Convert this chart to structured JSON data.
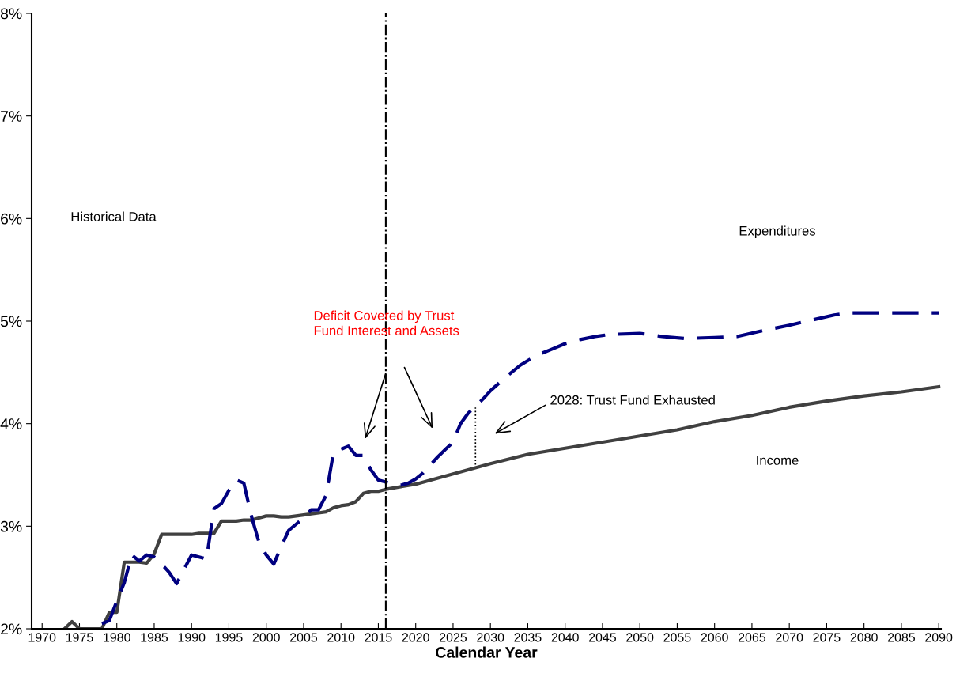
{
  "chart_data": {
    "type": "line",
    "xlabel": "Calendar Year",
    "xlim": [
      1968.6,
      2090.3
    ],
    "xticks": [
      1970,
      1975,
      1980,
      1985,
      1990,
      1995,
      2000,
      2005,
      2010,
      2015,
      2020,
      2025,
      2030,
      2035,
      2040,
      2045,
      2050,
      2055,
      2060,
      2065,
      2070,
      2075,
      2080,
      2085,
      2090
    ],
    "ylim": [
      2,
      8
    ],
    "yticks": [
      {
        "value": 2,
        "label": "2%"
      },
      {
        "value": 3,
        "label": "3%"
      },
      {
        "value": 4,
        "label": "4%"
      },
      {
        "value": 5,
        "label": "5%"
      },
      {
        "value": 6,
        "label": "6%"
      },
      {
        "value": 7,
        "label": "7%"
      },
      {
        "value": 8,
        "label": "8%"
      }
    ],
    "grid": false,
    "series": [
      {
        "color": "#404040",
        "line_style": "solid",
        "x": [
          1973,
          1974,
          1975,
          1977,
          1978,
          1979,
          1980,
          1981,
          1982,
          1983,
          1984,
          1985,
          1986,
          1987,
          1988,
          1989,
          1990,
          1991,
          1992,
          1993,
          1994,
          1995,
          1996,
          1997,
          1998,
          1999,
          2000,
          2001,
          2002,
          2003,
          2004,
          2005,
          2006,
          2007,
          2008,
          2009,
          2010,
          2011,
          2012,
          2013,
          2014,
          2015,
          2016,
          2020,
          2025,
          2030,
          2035,
          2040,
          2045,
          2050,
          2055,
          2060,
          2065,
          2070,
          2075,
          2080,
          2085,
          2090
        ],
        "values": [
          2.0,
          2.07,
          2.0,
          2.0,
          2.0,
          2.16,
          2.16,
          2.65,
          2.65,
          2.65,
          2.64,
          2.73,
          2.92,
          2.92,
          2.92,
          2.92,
          2.92,
          2.93,
          2.93,
          2.93,
          3.05,
          3.05,
          3.05,
          3.06,
          3.06,
          3.08,
          3.1,
          3.1,
          3.09,
          3.09,
          3.1,
          3.11,
          3.12,
          3.13,
          3.14,
          3.18,
          3.2,
          3.21,
          3.24,
          3.32,
          3.34,
          3.34,
          3.36,
          3.41,
          3.51,
          3.61,
          3.7,
          3.76,
          3.82,
          3.88,
          3.94,
          4.02,
          4.08,
          4.16,
          4.22,
          4.27,
          4.31,
          4.36
        ]
      },
      {
        "color": "#000080",
        "line_style": "dashed",
        "x": [
          1978,
          1979,
          1980,
          1981,
          1982,
          1983,
          1984,
          1985,
          1986,
          1987,
          1988,
          1989,
          1990,
          1991,
          1992,
          1993,
          1994,
          1995,
          1996,
          1997,
          1998,
          1999,
          2000,
          2001,
          2002,
          2003,
          2004,
          2005,
          2006,
          2007,
          2008,
          2009,
          2010,
          2011,
          2012,
          2013,
          2014,
          2015,
          2016,
          2017,
          2018,
          2019,
          2020,
          2021,
          2022,
          2023,
          2024,
          2025,
          2026,
          2027,
          2028,
          2029,
          2030,
          2032,
          2034,
          2036,
          2038,
          2040,
          2042,
          2044,
          2046,
          2050,
          2053,
          2056,
          2060,
          2063,
          2066,
          2070,
          2073,
          2076,
          2078,
          2085,
          2090
        ],
        "values": [
          2.05,
          2.08,
          2.27,
          2.45,
          2.72,
          2.66,
          2.72,
          2.7,
          2.63,
          2.55,
          2.44,
          2.58,
          2.72,
          2.7,
          2.68,
          3.17,
          3.22,
          3.35,
          3.45,
          3.42,
          3.1,
          2.85,
          2.72,
          2.63,
          2.8,
          2.96,
          3.02,
          3.08,
          3.16,
          3.16,
          3.3,
          3.72,
          3.75,
          3.78,
          3.69,
          3.69,
          3.55,
          3.45,
          3.43,
          3.41,
          3.4,
          3.42,
          3.46,
          3.52,
          3.6,
          3.68,
          3.75,
          3.82,
          4.0,
          4.1,
          4.17,
          4.24,
          4.32,
          4.45,
          4.57,
          4.66,
          4.72,
          4.78,
          4.82,
          4.85,
          4.87,
          4.88,
          4.85,
          4.83,
          4.84,
          4.85,
          4.9,
          4.96,
          5.01,
          5.06,
          5.08,
          5.08,
          5.08
        ]
      },
      {
        "color": "#000000",
        "line_style": "dotted",
        "x": [
          2028,
          2028
        ],
        "values": [
          3.6,
          4.17
        ]
      }
    ],
    "ref_lines": [
      {
        "axis": "x",
        "value": 2016,
        "color": "#000000",
        "line_style": "dashdot"
      }
    ],
    "annotations": [
      "Historical Data",
      "Expenditures",
      "Income",
      "Deficit Covered by Trust\nFund Interest and Assets",
      "2028: Trust Fund Exhausted"
    ]
  }
}
